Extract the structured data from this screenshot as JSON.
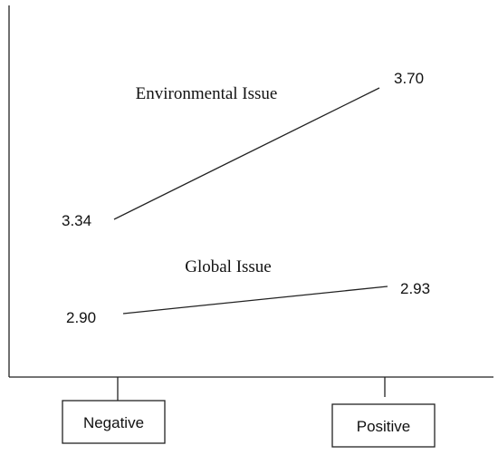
{
  "chart_data": {
    "type": "line",
    "categories": [
      "Negative",
      "Positive"
    ],
    "series": [
      {
        "name": "Environmental Issue",
        "values": [
          3.34,
          3.7
        ],
        "value_labels": [
          "3.34",
          "3.70"
        ]
      },
      {
        "name": "Global Issue",
        "values": [
          2.9,
          2.93
        ],
        "value_labels": [
          "2.90",
          "2.93"
        ]
      }
    ],
    "title": "",
    "xlabel": "",
    "ylabel": "",
    "grid": false,
    "legend": "inline labels above lines",
    "x_axis_style": "categories in boxes below axis"
  }
}
